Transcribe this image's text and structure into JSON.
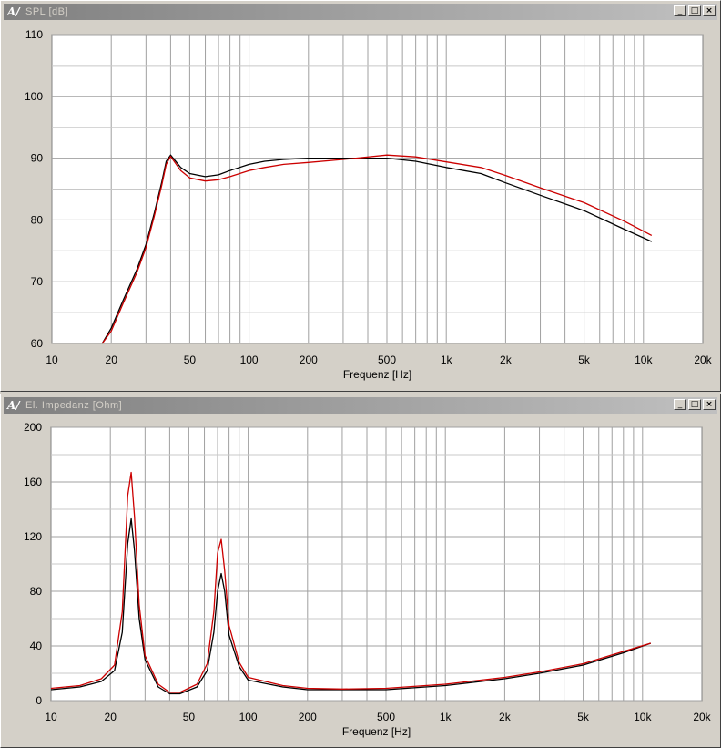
{
  "windows": [
    {
      "title": "SPL [dB]",
      "buttons": {
        "minimize": "_",
        "maximize": "□",
        "close": "×"
      }
    },
    {
      "title": "El. Impedanz [Ohm]",
      "buttons": {
        "minimize": "_",
        "maximize": "□",
        "close": "×"
      }
    }
  ],
  "chart_data": [
    {
      "type": "line",
      "title": "SPL [dB]",
      "xlabel": "Frequenz [Hz]",
      "ylabel": "",
      "xscale": "log",
      "xlim": [
        10,
        20000
      ],
      "ylim": [
        60,
        110
      ],
      "x_tick_labels": [
        "10",
        "20",
        "50",
        "100",
        "200",
        "500",
        "1k",
        "2k",
        "5k",
        "10k",
        "20k"
      ],
      "y_tick_labels": [
        "110",
        "100",
        "90",
        "80",
        "70",
        "60"
      ],
      "grid": true,
      "series": [
        {
          "color": "#000000",
          "x": [
            18,
            20,
            23,
            27,
            30,
            33,
            36,
            38,
            40,
            45,
            50,
            60,
            70,
            80,
            100,
            120,
            150,
            200,
            300,
            500,
            700,
            1000,
            1500,
            2000,
            3000,
            5000,
            8000,
            11000
          ],
          "y": [
            60,
            62.5,
            67,
            72,
            76,
            81,
            86,
            89.5,
            90.5,
            88.5,
            87.5,
            87,
            87.3,
            88,
            89,
            89.5,
            89.8,
            90,
            90,
            90,
            89.5,
            88.5,
            87.5,
            86,
            84,
            81.5,
            78.5,
            76.5
          ]
        },
        {
          "color": "#cc0000",
          "x": [
            18,
            20,
            23,
            27,
            30,
            33,
            36,
            38,
            40,
            45,
            50,
            60,
            70,
            80,
            100,
            120,
            150,
            200,
            300,
            500,
            700,
            1000,
            1500,
            2000,
            3000,
            5000,
            8000,
            11000
          ],
          "y": [
            60,
            62,
            66.5,
            71.5,
            75.5,
            80.5,
            85.5,
            89,
            90.3,
            88,
            86.8,
            86.3,
            86.5,
            87,
            88,
            88.5,
            89,
            89.3,
            89.8,
            90.5,
            90.2,
            89.4,
            88.5,
            87.2,
            85.2,
            82.8,
            79.8,
            77.5
          ]
        }
      ]
    },
    {
      "type": "line",
      "title": "El. Impedanz [Ohm]",
      "xlabel": "Frequenz [Hz]",
      "ylabel": "",
      "xscale": "log",
      "xlim": [
        10,
        20000
      ],
      "ylim": [
        0,
        200
      ],
      "x_tick_labels": [
        "10",
        "20",
        "50",
        "100",
        "200",
        "500",
        "1k",
        "2k",
        "5k",
        "10k",
        "20k"
      ],
      "y_tick_labels": [
        "200",
        "160",
        "120",
        "80",
        "40",
        "0"
      ],
      "grid": true,
      "series": [
        {
          "color": "#000000",
          "x": [
            10,
            14,
            18,
            21,
            23,
            24.5,
            25.5,
            26.5,
            28,
            30,
            35,
            40,
            45,
            55,
            62,
            67,
            70,
            73,
            76,
            80,
            90,
            100,
            150,
            200,
            300,
            500,
            1000,
            2000,
            3000,
            5000,
            8000,
            11000
          ],
          "y": [
            8,
            10,
            14,
            22,
            50,
            115,
            133,
            110,
            60,
            30,
            10,
            5,
            5,
            10,
            22,
            50,
            80,
            93,
            80,
            48,
            25,
            15,
            10,
            8,
            8,
            8,
            11,
            16,
            20,
            26,
            35,
            42
          ]
        },
        {
          "color": "#cc0000",
          "x": [
            10,
            14,
            18,
            21,
            23,
            24.5,
            25.5,
            26.5,
            28,
            30,
            35,
            40,
            45,
            55,
            62,
            67,
            70,
            73,
            76,
            80,
            90,
            100,
            150,
            200,
            300,
            500,
            1000,
            2000,
            3000,
            5000,
            8000,
            11000
          ],
          "y": [
            9,
            11,
            16,
            26,
            65,
            150,
            167,
            135,
            70,
            33,
            12,
            6,
            6,
            12,
            27,
            65,
            108,
            118,
            95,
            55,
            28,
            17,
            11,
            9,
            8.5,
            9,
            12,
            17,
            21,
            27,
            36,
            42
          ]
        }
      ]
    }
  ]
}
